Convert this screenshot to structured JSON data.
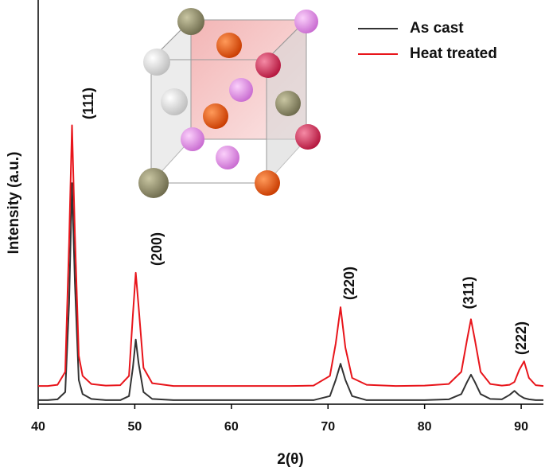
{
  "chart_data": {
    "type": "line",
    "x_label": "2(θ)",
    "y_label": "Intensity (a.u.)",
    "xlim": [
      40,
      92.3
    ],
    "xticks": [
      40,
      50,
      60,
      70,
      80,
      90
    ],
    "ylim": [
      0,
      100
    ],
    "legend": "upper right",
    "annotations": [
      "(111)",
      "(200)",
      "(220)",
      "(311)",
      "(222)"
    ],
    "x": [
      40,
      41,
      42,
      42.8,
      43.2,
      43.5,
      43.8,
      44.2,
      44.6,
      45.5,
      47,
      48.5,
      49.4,
      49.8,
      50.1,
      50.4,
      50.9,
      51.8,
      54,
      57,
      60,
      63,
      66,
      68.5,
      70.2,
      70.8,
      71.3,
      71.8,
      72.5,
      74,
      77,
      80,
      82.5,
      83.8,
      84.4,
      84.8,
      85.2,
      85.8,
      86.8,
      88,
      88.8,
      89.3,
      89.8,
      90.3,
      90.8,
      91.5,
      92.3
    ],
    "series": [
      {
        "name": "As cast",
        "color": "#333333",
        "values": [
          1,
          1,
          1.2,
          3,
          25,
          54.7,
          30,
          6,
          2.5,
          1.3,
          1,
          1,
          2,
          9,
          16,
          10,
          3,
          1.3,
          1,
          1,
          1,
          1,
          1,
          1,
          2,
          6,
          10,
          6,
          2,
          1,
          1,
          1,
          1.2,
          2.5,
          5.5,
          7.3,
          5.5,
          2.5,
          1.3,
          1.2,
          2.3,
          3.3,
          2.2,
          1.5,
          1.2,
          1,
          1
        ]
      },
      {
        "name": "Heat treated",
        "color": "#e8151b",
        "values": [
          4.5,
          4.5,
          4.8,
          8,
          40,
          69,
          42,
          12,
          7,
          5,
          4.6,
          4.7,
          7,
          22,
          32.5,
          24,
          9,
          5.2,
          4.5,
          4.5,
          4.5,
          4.5,
          4.5,
          4.6,
          7,
          15,
          24,
          14,
          6.5,
          4.8,
          4.5,
          4.6,
          5,
          8,
          16,
          21,
          16,
          8,
          5,
          4.6,
          4.8,
          5.5,
          8.5,
          10.6,
          6.5,
          4.7,
          4.5
        ]
      }
    ]
  }
}
